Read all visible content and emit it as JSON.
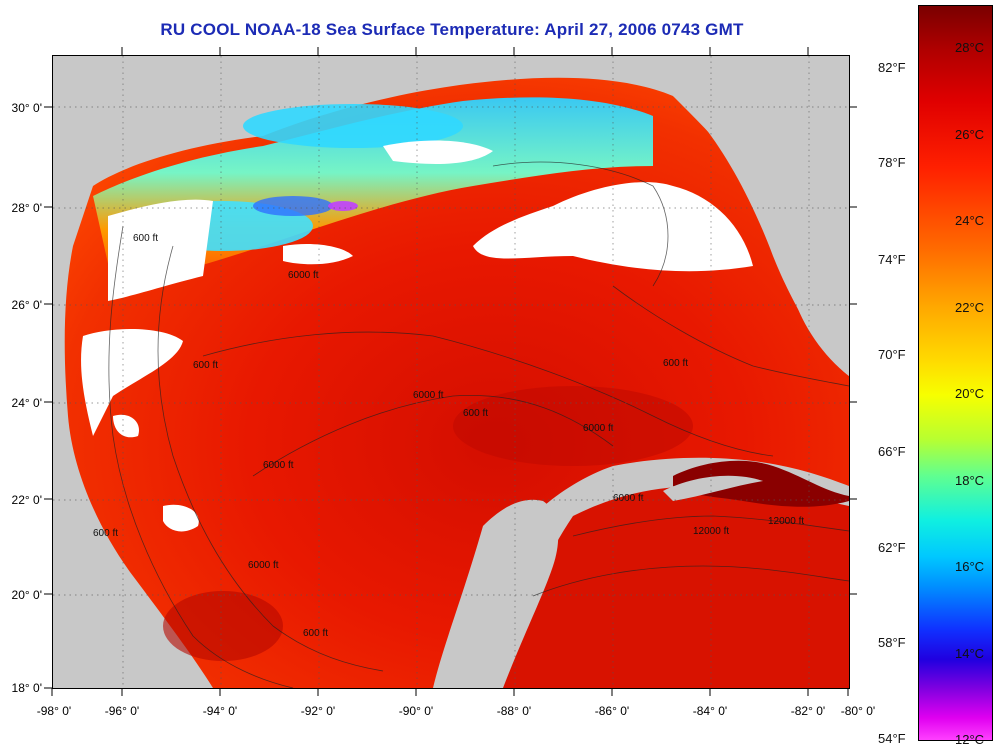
{
  "title": "RU COOL  NOAA-18  Sea Surface Temperature:  April 27, 2006 0743 GMT",
  "map": {
    "lat_labels": [
      "30° 0'",
      "28° 0'",
      "26° 0'",
      "24° 0'",
      "22° 0'",
      "20° 0'",
      "18° 0'"
    ],
    "lon_labels": [
      "-98° 0'",
      "-96° 0'",
      "-94° 0'",
      "-92° 0'",
      "-90° 0'",
      "-88° 0'",
      "-86° 0'",
      "-84° 0'",
      "-82° 0'",
      "-80° 0'"
    ],
    "contour_labels": [
      "600 ft",
      "6000 ft",
      "600 ft",
      "6000 ft",
      "600 ft",
      "6000 ft",
      "600 ft",
      "6000 ft",
      "12000 ft",
      "600 ft",
      "6000 ft",
      "12000 ft",
      "6000 ft",
      "600 ft"
    ],
    "colors": {
      "land": "#c8c8c8",
      "cloud": "#ffffff",
      "warm_sea": "#e81800"
    }
  },
  "colorbar": {
    "celsius": [
      "28°C",
      "26°C",
      "24°C",
      "22°C",
      "20°C",
      "18°C",
      "16°C",
      "14°C",
      "12°C"
    ],
    "fahrenheit": [
      "82°F",
      "78°F",
      "74°F",
      "70°F",
      "66°F",
      "62°F",
      "58°F",
      "54°F"
    ]
  }
}
